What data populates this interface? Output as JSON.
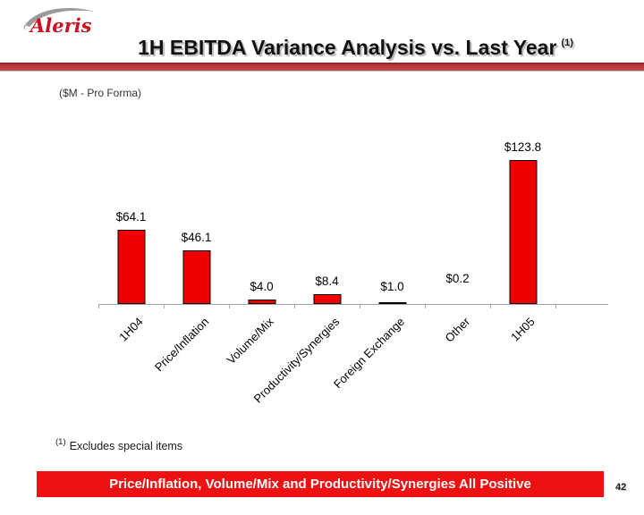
{
  "logo": {
    "text": "Aleris"
  },
  "header": {
    "title": "1H EBITDA Variance Analysis vs. Last Year",
    "footnote_ref": "(1)"
  },
  "subtitle": "($M - Pro Forma)",
  "chart_data": {
    "type": "bar",
    "categories": [
      "1H04",
      "Price/Inflation",
      "Volume/Mix",
      "Productivity/Synergies",
      "Foreign Exchange",
      "Other",
      "1H05"
    ],
    "values": [
      64.1,
      46.1,
      4.0,
      8.4,
      1.0,
      0.2,
      123.8
    ],
    "data_labels": [
      "$64.1",
      "$46.1",
      "$4.0",
      "$8.4",
      "$1.0",
      "$0.2",
      "$123.8"
    ],
    "title": "",
    "xlabel": "",
    "ylabel": "",
    "ylim": [
      0,
      130
    ],
    "grid": false,
    "legend": false,
    "bar_color": "#ee0000",
    "bar_border_color": "#000000",
    "axis_color": "#a6a6a6",
    "x_tick_marks": true,
    "category_label_rotation_deg": 45
  },
  "footnote": {
    "ref": "(1)",
    "text": "Excludes special items"
  },
  "banner": {
    "text": "Price/Inflation, Volume/Mix and Productivity/Synergies All Positive",
    "bg_color": "#ee1111",
    "text_color": "#ffffff"
  },
  "page_number": "42"
}
